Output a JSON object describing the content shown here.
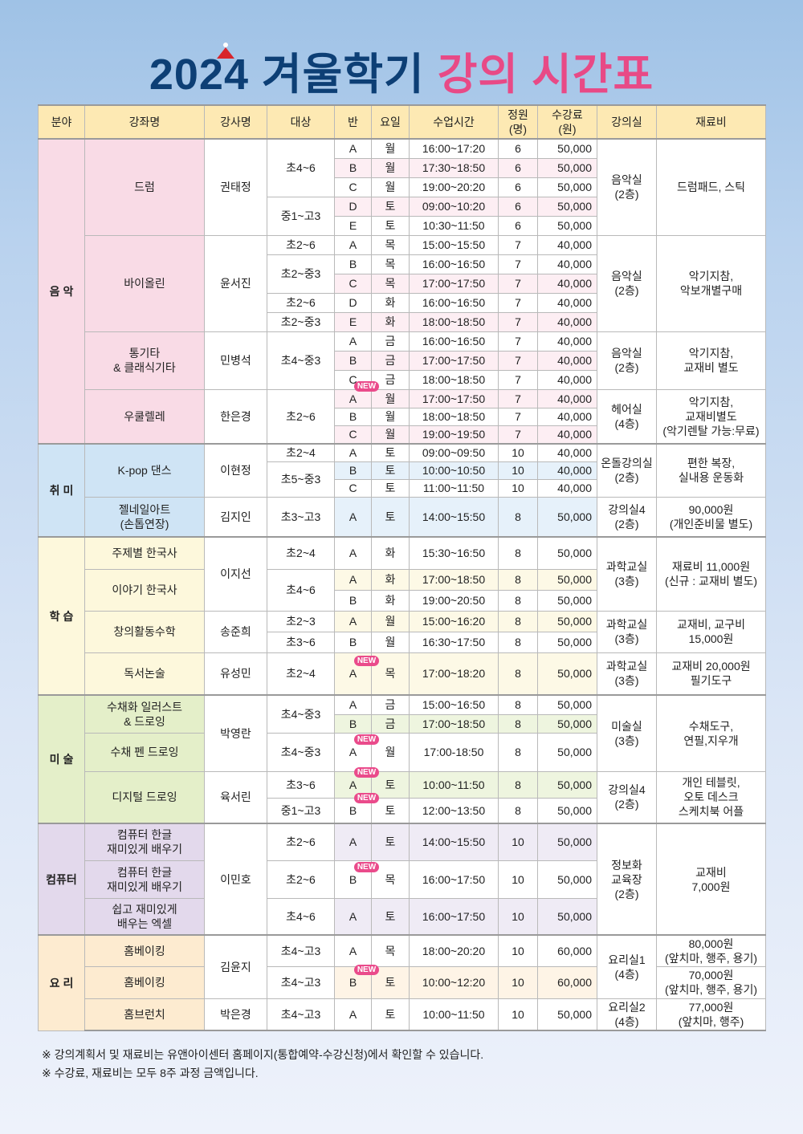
{
  "title": {
    "part1": "2024 겨울학기",
    "part2": "강의 시간표"
  },
  "colors": {
    "title_navy": "#0d3f75",
    "title_pink": "#e84a86",
    "header_bg": "#fde9b3",
    "new_badge": "#ea4b8b"
  },
  "labels": {
    "new_badge": "NEW"
  },
  "header": {
    "columns": [
      "분야",
      "강좌명",
      "강사명",
      "대상",
      "반",
      "요일",
      "수업시간",
      "정원\n(명)",
      "수강료\n(원)",
      "강의실",
      "재료비"
    ]
  },
  "sections": [
    {
      "field": "음 악",
      "color": "#f9dbe6",
      "shade": "#fdeef3",
      "rows": [
        {
          "course": "드럼",
          "teacher": "권태정",
          "target": "초4~6",
          "cls": "A",
          "day": "월",
          "time": "16:00~17:20",
          "cap": "6",
          "fee": "50,000",
          "room": "음악실\n(2층)",
          "material": "드럼패드, 스틱"
        },
        {
          "cls": "B",
          "day": "월",
          "time": "17:30~18:50",
          "cap": "6",
          "fee": "50,000",
          "shade": true
        },
        {
          "cls": "C",
          "day": "월",
          "time": "19:00~20:20",
          "cap": "6",
          "fee": "50,000"
        },
        {
          "target": "중1~고3",
          "cls": "D",
          "day": "토",
          "time": "09:00~10:20",
          "cap": "6",
          "fee": "50,000",
          "shade": true
        },
        {
          "cls": "E",
          "day": "토",
          "time": "10:30~11:50",
          "cap": "6",
          "fee": "50,000"
        },
        {
          "course": "바이올린",
          "teacher": "윤서진",
          "target": "초2~6",
          "cls": "A",
          "day": "목",
          "time": "15:00~15:50",
          "cap": "7",
          "fee": "40,000",
          "room": "음악실\n(2층)",
          "material": "악기지참,\n악보개별구매"
        },
        {
          "target": "초2~중3",
          "cls": "B",
          "day": "목",
          "time": "16:00~16:50",
          "cap": "7",
          "fee": "40,000"
        },
        {
          "cls": "C",
          "day": "목",
          "time": "17:00~17:50",
          "cap": "7",
          "fee": "40,000",
          "shade": true
        },
        {
          "target": "초2~6",
          "cls": "D",
          "day": "화",
          "time": "16:00~16:50",
          "cap": "7",
          "fee": "40,000"
        },
        {
          "target": "초2~중3",
          "cls": "E",
          "day": "화",
          "time": "18:00~18:50",
          "cap": "7",
          "fee": "40,000",
          "shade": true
        },
        {
          "course": "통기타\n& 클래식기타",
          "teacher": "민병석",
          "target": "초4~중3",
          "cls": "A",
          "day": "금",
          "time": "16:00~16:50",
          "cap": "7",
          "fee": "40,000",
          "room": "음악실\n(2층)",
          "material": "악기지참,\n교재비 별도"
        },
        {
          "cls": "B",
          "day": "금",
          "time": "17:00~17:50",
          "cap": "7",
          "fee": "40,000",
          "shade": true
        },
        {
          "cls": "C",
          "day": "금",
          "time": "18:00~18:50",
          "cap": "7",
          "fee": "40,000"
        },
        {
          "course": "우쿨렐레",
          "teacher": "한은경",
          "target": "초2~6",
          "cls": "A",
          "new": true,
          "day": "월",
          "time": "17:00~17:50",
          "cap": "7",
          "fee": "40,000",
          "room": "헤어실\n(4층)",
          "material": "악기지참,\n교재비별도\n(악기렌탈 가능:무료)",
          "shade": true
        },
        {
          "cls": "B",
          "day": "월",
          "time": "18:00~18:50",
          "cap": "7",
          "fee": "40,000"
        },
        {
          "cls": "C",
          "day": "월",
          "time": "19:00~19:50",
          "cap": "7",
          "fee": "40,000",
          "shade": true
        }
      ]
    },
    {
      "field": "취 미",
      "color": "#cfe4f5",
      "shade": "#e6f1fa",
      "rows": [
        {
          "course": "K-pop 댄스",
          "teacher": "이현정",
          "target": "초2~4",
          "cls": "A",
          "day": "토",
          "time": "09:00~09:50",
          "cap": "10",
          "fee": "40,000",
          "room": "온돌강의실\n(2층)",
          "material": "편한 복장,\n실내용 운동화"
        },
        {
          "target": "초5~중3",
          "cls": "B",
          "day": "토",
          "time": "10:00~10:50",
          "cap": "10",
          "fee": "40,000",
          "shade": true
        },
        {
          "cls": "C",
          "day": "토",
          "time": "11:00~11:50",
          "cap": "10",
          "fee": "40,000"
        },
        {
          "course": "젤네일아트\n(손톱연장)",
          "teacher": "김지인",
          "target": "초3~고3",
          "cls": "A",
          "day": "토",
          "time": "14:00~15:50",
          "cap": "8",
          "fee": "50,000",
          "room": "강의실4\n(2층)",
          "material": "90,000원\n(개인준비물 별도)",
          "shade": true
        }
      ]
    },
    {
      "field": "학 습",
      "color": "#fdf8dc",
      "shade": "#fdf9e6",
      "rows": [
        {
          "course": "주제별 한국사",
          "teacher": "이지선",
          "target": "초2~4",
          "cls": "A",
          "day": "화",
          "time": "15:30~16:50",
          "cap": "8",
          "fee": "50,000",
          "room": "과학교실\n(3층)",
          "material": "재료비 11,000원\n(신규 : 교재비 별도)"
        },
        {
          "course": "이야기 한국사",
          "target": "초4~6",
          "cls": "A",
          "day": "화",
          "time": "17:00~18:50",
          "cap": "8",
          "fee": "50,000",
          "shade": true
        },
        {
          "cls": "B",
          "day": "화",
          "time": "19:00~20:50",
          "cap": "8",
          "fee": "50,000"
        },
        {
          "course": "창의활동수학",
          "teacher": "송준희",
          "target": "초2~3",
          "cls": "A",
          "day": "월",
          "time": "15:00~16:20",
          "cap": "8",
          "fee": "50,000",
          "room": "과학교실\n(3층)",
          "material": "교재비, 교구비\n15,000원",
          "shade": true
        },
        {
          "target": "초3~6",
          "cls": "B",
          "day": "월",
          "time": "16:30~17:50",
          "cap": "8",
          "fee": "50,000"
        },
        {
          "course": "독서논술",
          "teacher": "유성민",
          "target": "초2~4",
          "cls": "A",
          "new": true,
          "day": "목",
          "time": "17:00~18:20",
          "cap": "8",
          "fee": "50,000",
          "room": "과학교실\n(3층)",
          "material": "교재비 20,000원\n필기도구",
          "shade": true
        }
      ]
    },
    {
      "field": "미 술",
      "color": "#e4efc9",
      "shade": "#eef5df",
      "rows": [
        {
          "course": "수채화 일러스트\n& 드로잉",
          "teacher": "박영란",
          "target": "초4~중3",
          "cls": "A",
          "day": "금",
          "time": "15:00~16:50",
          "cap": "8",
          "fee": "50,000",
          "room": "미술실\n(3층)",
          "material": "수채도구,\n연필,지우개"
        },
        {
          "cls": "B",
          "day": "금",
          "time": "17:00~18:50",
          "cap": "8",
          "fee": "50,000",
          "shade": true
        },
        {
          "course": "수채 펜 드로잉",
          "target": "초4~중3",
          "cls": "A",
          "new": true,
          "day": "월",
          "time": "17:00-18:50",
          "cap": "8",
          "fee": "50,000"
        },
        {
          "course": "디지털 드로잉",
          "teacher": "육서린",
          "target": "초3~6",
          "cls": "A",
          "new": true,
          "day": "토",
          "time": "10:00~11:50",
          "cap": "8",
          "fee": "50,000",
          "room": "강의실4\n(2층)",
          "material": "개인 테블릿,\n오토 데스크\n스케치북 어플",
          "shade": true
        },
        {
          "target": "중1~고3",
          "cls": "B",
          "new": true,
          "day": "토",
          "time": "12:00~13:50",
          "cap": "8",
          "fee": "50,000"
        }
      ]
    },
    {
      "field": "컴퓨터",
      "color": "#e3d9ec",
      "shade": "#efebf5",
      "rows": [
        {
          "course": "컴퓨터 한글\n재미있게 배우기",
          "teacher": "이민호",
          "target": "초2~6",
          "cls": "A",
          "day": "토",
          "time": "14:00~15:50",
          "cap": "10",
          "fee": "50,000",
          "room": "정보화\n교육장\n(2층)",
          "material": "교재비\n7,000원",
          "shade": true
        },
        {
          "course": "컴퓨터 한글\n재미있게 배우기",
          "target": "초2~6",
          "cls": "B",
          "new": true,
          "day": "목",
          "time": "16:00~17:50",
          "cap": "10",
          "fee": "50,000"
        },
        {
          "course": "쉽고 재미있게\n배우는 엑셀",
          "target": "초4~6",
          "cls": "A",
          "day": "토",
          "time": "16:00~17:50",
          "cap": "10",
          "fee": "50,000",
          "shade": true
        }
      ]
    },
    {
      "field": "요 리",
      "color": "#fdebd0",
      "shade": "#fef4e6",
      "rows": [
        {
          "course": "홈베이킹",
          "teacher": "김윤지",
          "target": "초4~고3",
          "cls": "A",
          "day": "목",
          "time": "18:00~20:20",
          "cap": "10",
          "fee": "60,000",
          "room": "요리실1\n(4층)",
          "material": "80,000원\n(앞치마, 행주, 용기)"
        },
        {
          "course": "홈베이킹",
          "target": "초4~고3",
          "cls": "B",
          "new": true,
          "day": "토",
          "time": "10:00~12:20",
          "cap": "10",
          "fee": "60,000",
          "material": "70,000원\n(앞치마, 행주, 용기)",
          "shade": true
        },
        {
          "course": "홈브런치",
          "teacher": "박은경",
          "target": "초4~고3",
          "cls": "A",
          "day": "토",
          "time": "10:00~11:50",
          "cap": "10",
          "fee": "50,000",
          "room": "요리실2\n(4층)",
          "material": "77,000원\n(앞치마, 행주)"
        }
      ]
    }
  ],
  "notes": [
    "※ 강의계획서 및 재료비는 유앤아이센터 홈페이지(통합예약-수강신청)에서 확인할 수 있습니다.",
    "※ 수강료, 재료비는 모두 8주 과정 금액입니다."
  ]
}
